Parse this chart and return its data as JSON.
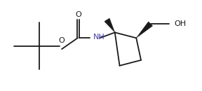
{
  "background": "#ffffff",
  "line_color": "#1a1a1a",
  "nh_color": "#4040c0",
  "line_width": 1.3,
  "figsize": [
    2.88,
    1.3
  ],
  "dpi": 100,
  "xlim": [
    0.0,
    2.88
  ],
  "ylim": [
    0.0,
    1.3
  ]
}
